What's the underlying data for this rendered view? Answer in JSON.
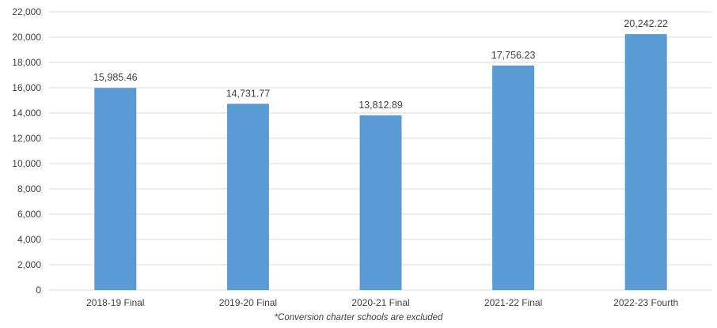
{
  "chart_data": {
    "type": "bar",
    "categories": [
      "2018-19 Final",
      "2019-20 Final",
      "2020-21 Final",
      "2021-22 Final",
      "2022-23 Fourth"
    ],
    "values": [
      15985.46,
      14731.77,
      13812.89,
      17756.23,
      20242.22
    ],
    "data_labels": [
      "15,985.46",
      "14,731.77",
      "13,812.89",
      "17,756.23",
      "20,242.22"
    ],
    "ylim": [
      0,
      22000
    ],
    "yticks": [
      0,
      2000,
      4000,
      6000,
      8000,
      10000,
      12000,
      14000,
      16000,
      18000,
      20000,
      22000
    ],
    "ytick_labels": [
      "0",
      "2,000",
      "4,000",
      "6,000",
      "8,000",
      "10,000",
      "12,000",
      "14,000",
      "16,000",
      "18,000",
      "20,000",
      "22,000"
    ],
    "title": "",
    "xlabel": "",
    "ylabel": "",
    "grid": true,
    "legend": "none",
    "bar_color": "#5b9bd5",
    "grid_color": "#d9d9d9"
  },
  "footnote": "*Conversion charter schools are excluded"
}
